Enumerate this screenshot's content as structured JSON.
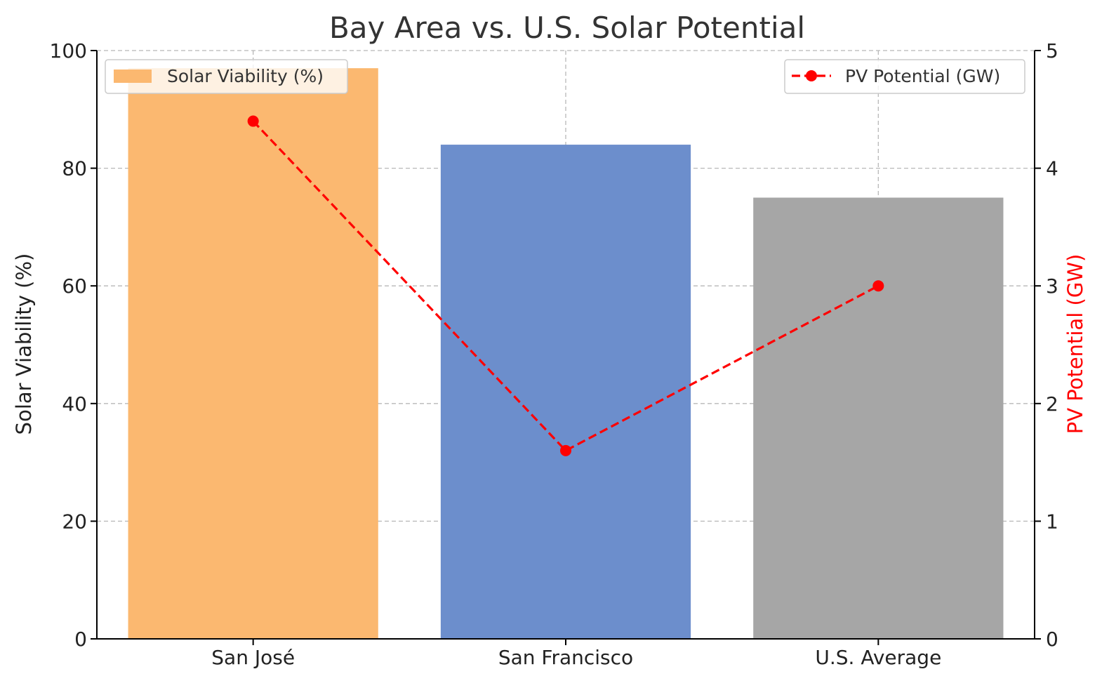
{
  "chart_data": {
    "type": "bar",
    "title": "Bay Area vs. U.S. Solar Potential",
    "categories": [
      "San José",
      "San Francisco",
      "U.S. Average"
    ],
    "series": [
      {
        "name": "Solar Viability (%)",
        "type": "bar",
        "axis": "left",
        "values": [
          97,
          84,
          75
        ],
        "colors": [
          "#fbb870",
          "#6c8ecc",
          "#a6a6a6"
        ]
      },
      {
        "name": "PV Potential (GW)",
        "type": "line",
        "axis": "right",
        "values": [
          4.4,
          1.6,
          3.0
        ],
        "color": "#ff0000",
        "style": "dashed",
        "marker": "circle"
      }
    ],
    "ylabel_left": "Solar Viability (%)",
    "ylabel_right": "PV Potential (GW)",
    "ylim_left": [
      0,
      100
    ],
    "ylim_right": [
      0,
      5
    ],
    "yticks_left": [
      "0",
      "20",
      "40",
      "60",
      "80",
      "100"
    ],
    "yticks_right": [
      "0",
      "1",
      "2",
      "3",
      "4",
      "5"
    ],
    "grid": true,
    "legend_left_position": "top-left",
    "legend_right_position": "top-right"
  }
}
